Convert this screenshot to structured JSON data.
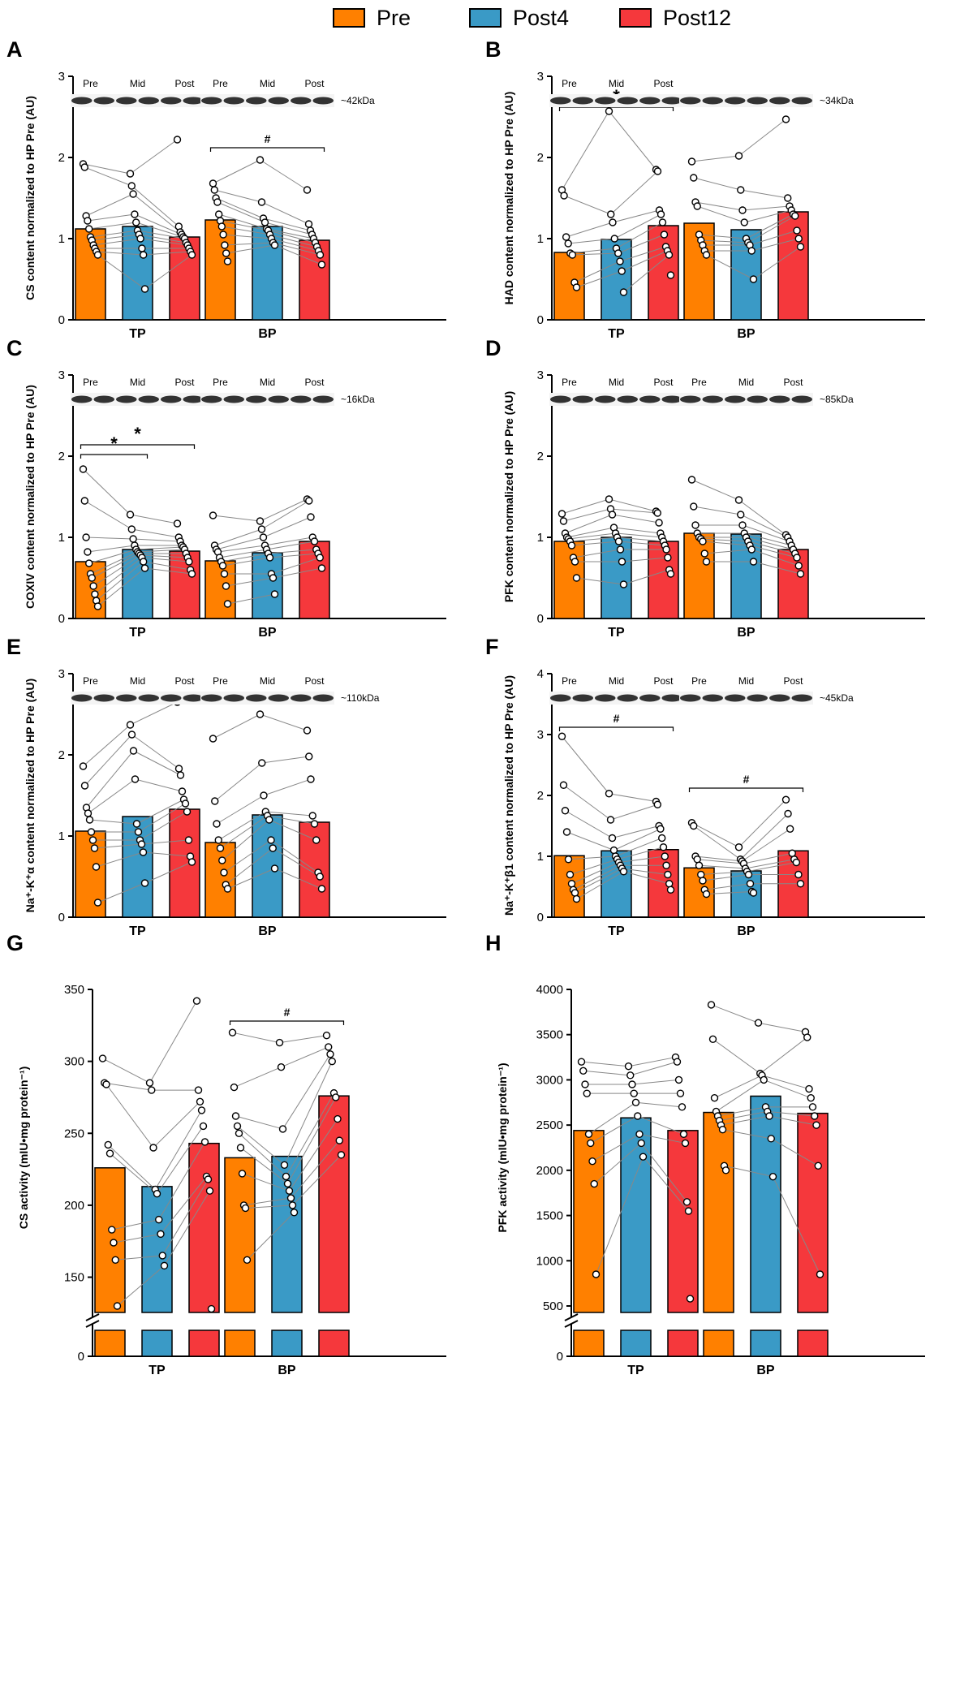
{
  "colors": {
    "Pre": "#FF8000",
    "Post4": "#3A9AC6",
    "Post12": "#F5383C"
  },
  "legend": [
    {
      "label": "Pre",
      "color": "#FF8000"
    },
    {
      "label": "Post4",
      "color": "#3A9AC6"
    },
    {
      "label": "Post12",
      "color": "#F5383C"
    }
  ],
  "chart_data": [
    {
      "panel": "A",
      "type": "bar",
      "ylabel": "CS content normalized to HP Pre (AU)",
      "ylim": [
        0,
        3
      ],
      "yticks": [
        0,
        1,
        2,
        3
      ],
      "groups": [
        "TP",
        "BP"
      ],
      "series": [
        {
          "name": "Pre",
          "values": [
            1.12,
            1.23
          ]
        },
        {
          "name": "Post4",
          "values": [
            1.15,
            1.15
          ]
        },
        {
          "name": "Post12",
          "values": [
            1.02,
            0.98
          ]
        }
      ],
      "points": {
        "TP": {
          "Pre": [
            1.92,
            1.88,
            1.28,
            1.22,
            1.12,
            1.02,
            0.98,
            0.92,
            0.88,
            0.84,
            0.8
          ],
          "Post4": [
            1.8,
            1.65,
            1.55,
            1.3,
            1.2,
            1.1,
            1.05,
            1.0,
            0.88,
            0.8,
            0.38
          ],
          "Post12": [
            2.22,
            1.15,
            1.08,
            1.05,
            1.02,
            1.0,
            0.95,
            0.92,
            0.88,
            0.84,
            0.8
          ]
        },
        "BP": {
          "Pre": [
            1.68,
            1.6,
            1.5,
            1.45,
            1.3,
            1.22,
            1.15,
            1.05,
            0.92,
            0.82,
            0.72
          ],
          "Post4": [
            1.97,
            1.45,
            1.25,
            1.2,
            1.12,
            1.1,
            1.05,
            1.0,
            0.95,
            0.92
          ],
          "Post12": [
            1.6,
            1.18,
            1.1,
            1.05,
            1.0,
            0.95,
            0.9,
            0.85,
            0.8,
            0.68
          ]
        }
      },
      "annotations": [
        {
          "group": "BP",
          "from": 0,
          "to": 2,
          "y": 2.12,
          "label": "#"
        }
      ],
      "blot": {
        "kda": "~42kDa",
        "bands": [
          {
            "group": "TP",
            "labels": [
              "Pre",
              "Mid",
              "Post"
            ]
          },
          {
            "group": "BP",
            "labels": [
              "Pre",
              "Mid",
              "Post"
            ]
          }
        ]
      }
    },
    {
      "panel": "B",
      "type": "bar",
      "ylabel": "HAD content normalized to HP Pre (AU)",
      "ylim": [
        0,
        3
      ],
      "yticks": [
        0,
        1,
        2,
        3
      ],
      "groups": [
        "TP",
        "BP"
      ],
      "series": [
        {
          "name": "Pre",
          "values": [
            0.83,
            1.19
          ]
        },
        {
          "name": "Post4",
          "values": [
            0.99,
            1.11
          ]
        },
        {
          "name": "Post12",
          "values": [
            1.16,
            1.33
          ]
        }
      ],
      "points": {
        "TP": {
          "Pre": [
            1.6,
            1.53,
            1.02,
            0.94,
            0.82,
            0.8,
            0.46,
            0.4
          ],
          "Post4": [
            2.57,
            1.3,
            1.2,
            1.0,
            0.88,
            0.82,
            0.72,
            0.6,
            0.34
          ],
          "Post12": [
            1.85,
            1.83,
            1.35,
            1.3,
            1.2,
            1.05,
            0.9,
            0.85,
            0.8,
            0.55
          ]
        },
        "BP": {
          "Pre": [
            1.95,
            1.75,
            1.45,
            1.4,
            1.05,
            0.98,
            0.92,
            0.85,
            0.8
          ],
          "Post4": [
            2.02,
            1.6,
            1.35,
            1.2,
            1.0,
            0.95,
            0.92,
            0.85,
            0.5
          ],
          "Post12": [
            2.47,
            1.5,
            1.4,
            1.35,
            1.3,
            1.28,
            1.1,
            1.0,
            0.9
          ]
        }
      },
      "annotations": [
        {
          "group": "TP",
          "from": 0,
          "to": 2,
          "y": 2.62,
          "label": "*"
        }
      ],
      "blot": {
        "kda": "~34kDa",
        "bands": [
          {
            "group": "TP",
            "labels": [
              "Pre",
              "Mid",
              "Post"
            ]
          },
          {
            "group": "BP",
            "labels": [
              "",
              "",
              ""
            ]
          }
        ]
      }
    },
    {
      "panel": "C",
      "type": "bar",
      "ylabel": "COXIV content normalized to HP Pre (AU)",
      "ylim": [
        0,
        3
      ],
      "yticks": [
        0,
        1,
        2,
        3
      ],
      "groups": [
        "TP",
        "BP"
      ],
      "series": [
        {
          "name": "Pre",
          "values": [
            0.7,
            0.71
          ]
        },
        {
          "name": "Post4",
          "values": [
            0.85,
            0.81
          ]
        },
        {
          "name": "Post12",
          "values": [
            0.83,
            0.95
          ]
        }
      ],
      "points": {
        "TP": {
          "Pre": [
            1.84,
            1.45,
            1.0,
            0.82,
            0.68,
            0.55,
            0.5,
            0.4,
            0.3,
            0.22,
            0.15
          ],
          "Post4": [
            1.28,
            1.1,
            0.98,
            0.9,
            0.85,
            0.82,
            0.8,
            0.78,
            0.75,
            0.7,
            0.62
          ],
          "Post12": [
            1.17,
            1.0,
            0.95,
            0.9,
            0.88,
            0.85,
            0.8,
            0.75,
            0.7,
            0.6,
            0.55
          ]
        },
        "BP": {
          "Pre": [
            1.27,
            0.9,
            0.85,
            0.82,
            0.75,
            0.7,
            0.65,
            0.55,
            0.4,
            0.18
          ],
          "Post4": [
            1.2,
            1.1,
            1.0,
            0.9,
            0.85,
            0.8,
            0.75,
            0.55,
            0.5,
            0.3
          ],
          "Post12": [
            1.47,
            1.45,
            1.25,
            1.0,
            0.95,
            0.85,
            0.8,
            0.75,
            0.62
          ]
        }
      },
      "annotations": [
        {
          "group": "TP",
          "from": 0,
          "to": 1,
          "y": 2.02,
          "label": "*"
        },
        {
          "group": "TP",
          "from": 0,
          "to": 2,
          "y": 2.14,
          "label": "*"
        }
      ],
      "blot": {
        "kda": "~16kDa",
        "bands": [
          {
            "group": "TP",
            "labels": [
              "Pre",
              "Mid",
              "Post"
            ]
          },
          {
            "group": "BP",
            "labels": [
              "Pre",
              "Mid",
              "Post"
            ]
          }
        ]
      }
    },
    {
      "panel": "D",
      "type": "bar",
      "ylabel": "PFK content normalized to HP Pre (AU)",
      "ylim": [
        0,
        3
      ],
      "yticks": [
        0,
        1,
        2,
        3
      ],
      "groups": [
        "TP",
        "BP"
      ],
      "series": [
        {
          "name": "Pre",
          "values": [
            0.95,
            1.05
          ]
        },
        {
          "name": "Post4",
          "values": [
            1.0,
            1.04
          ]
        },
        {
          "name": "Post12",
          "values": [
            0.95,
            0.85
          ]
        }
      ],
      "points": {
        "TP": {
          "Pre": [
            1.29,
            1.2,
            1.05,
            1.0,
            0.98,
            0.95,
            0.9,
            0.75,
            0.7,
            0.5
          ],
          "Post4": [
            1.47,
            1.35,
            1.28,
            1.12,
            1.05,
            1.0,
            0.95,
            0.85,
            0.7,
            0.42
          ],
          "Post12": [
            1.32,
            1.3,
            1.18,
            1.05,
            1.0,
            0.95,
            0.9,
            0.85,
            0.75,
            0.6,
            0.55
          ]
        },
        "BP": {
          "Pre": [
            1.71,
            1.38,
            1.15,
            1.05,
            1.0,
            0.98,
            0.95,
            0.8,
            0.7
          ],
          "Post4": [
            1.46,
            1.28,
            1.15,
            1.05,
            1.0,
            0.95,
            0.9,
            0.85,
            0.7
          ],
          "Post12": [
            1.03,
            1.0,
            0.95,
            0.9,
            0.85,
            0.8,
            0.75,
            0.65,
            0.55
          ]
        }
      },
      "annotations": [],
      "blot": {
        "kda": "~85kDa",
        "bands": [
          {
            "group": "TP",
            "labels": [
              "Pre",
              "Mid",
              "Post"
            ]
          },
          {
            "group": "BP",
            "labels": [
              "Pre",
              "Mid",
              "Post"
            ]
          }
        ]
      }
    },
    {
      "panel": "E",
      "type": "bar",
      "ylabel": "Na⁺-K⁺α content normalized to HP Pre (AU)",
      "ylim": [
        0,
        3
      ],
      "yticks": [
        0,
        1,
        2,
        3
      ],
      "groups": [
        "TP",
        "BP"
      ],
      "series": [
        {
          "name": "Pre",
          "values": [
            1.06,
            0.92
          ]
        },
        {
          "name": "Post4",
          "values": [
            1.24,
            1.26
          ]
        },
        {
          "name": "Post12",
          "values": [
            1.33,
            1.17
          ]
        }
      ],
      "points": {
        "TP": {
          "Pre": [
            1.86,
            1.62,
            1.35,
            1.28,
            1.2,
            1.05,
            0.95,
            0.85,
            0.62,
            0.18
          ],
          "Post4": [
            2.37,
            2.25,
            2.05,
            1.7,
            1.15,
            1.05,
            0.95,
            0.9,
            0.8,
            0.42
          ],
          "Post12": [
            2.65,
            1.83,
            1.75,
            1.55,
            1.45,
            1.4,
            1.3,
            0.95,
            0.75,
            0.68
          ],
          "BP_placeholder": []
        },
        "BP": {
          "Pre": [
            2.2,
            1.43,
            1.15,
            0.95,
            0.85,
            0.7,
            0.55,
            0.4,
            0.35
          ],
          "Post4": [
            2.5,
            1.9,
            1.5,
            1.3,
            1.25,
            1.2,
            0.95,
            0.85,
            0.6
          ],
          "Post12": [
            2.3,
            1.98,
            1.7,
            1.25,
            1.15,
            0.95,
            0.55,
            0.5,
            0.35
          ]
        }
      },
      "annotations": [],
      "blot": {
        "kda": "~110kDa",
        "bands": [
          {
            "group": "TP",
            "labels": [
              "Pre",
              "Mid",
              "Post"
            ]
          },
          {
            "group": "BP",
            "labels": [
              "Pre",
              "Mid",
              "Post"
            ]
          }
        ]
      }
    },
    {
      "panel": "F",
      "type": "bar",
      "ylabel": "Na⁺-K⁺β1 content normalized to HP Pre (AU)",
      "ylim": [
        0,
        4
      ],
      "yticks": [
        0,
        1,
        2,
        3,
        4
      ],
      "groups": [
        "TP",
        "BP"
      ],
      "series": [
        {
          "name": "Pre",
          "values": [
            1.01,
            0.81
          ]
        },
        {
          "name": "Post4",
          "values": [
            1.09,
            0.76
          ]
        },
        {
          "name": "Post12",
          "values": [
            1.11,
            1.09
          ]
        }
      ],
      "points": {
        "TP": {
          "Pre": [
            2.97,
            2.17,
            1.75,
            1.4,
            0.95,
            0.7,
            0.55,
            0.45,
            0.4,
            0.3
          ],
          "Post4": [
            2.03,
            1.6,
            1.3,
            1.1,
            1.0,
            0.95,
            0.9,
            0.85,
            0.8,
            0.75
          ],
          "Post12": [
            1.9,
            1.85,
            1.5,
            1.45,
            1.3,
            1.15,
            1.0,
            0.85,
            0.7,
            0.55,
            0.45
          ]
        },
        "BP": {
          "Pre": [
            1.55,
            1.5,
            1.0,
            0.95,
            0.85,
            0.7,
            0.6,
            0.45,
            0.38
          ],
          "Post4": [
            1.15,
            0.95,
            0.92,
            0.88,
            0.8,
            0.75,
            0.7,
            0.55,
            0.42,
            0.4
          ],
          "Post12": [
            1.93,
            1.7,
            1.45,
            1.05,
            0.95,
            0.9,
            0.7,
            0.55
          ]
        }
      },
      "annotations": [
        {
          "group": "TP",
          "from": 0,
          "to": 2,
          "y": 3.12,
          "label": "#"
        },
        {
          "group": "BP",
          "from": 0,
          "to": 2,
          "y": 2.12,
          "label": "#"
        }
      ],
      "blot": {
        "kda": "~45kDa",
        "bands": [
          {
            "group": "TP",
            "labels": [
              "Pre",
              "Mid",
              "Post"
            ]
          },
          {
            "group": "BP",
            "labels": [
              "Pre",
              "Mid",
              "Post"
            ]
          }
        ]
      }
    },
    {
      "panel": "G",
      "type": "bar",
      "ylabel": "CS activity (mIU•mg protein⁻¹)",
      "ylim": [
        130,
        350
      ],
      "yticks": [
        150,
        200,
        250,
        300,
        350
      ],
      "broken_axis": true,
      "lower_tick": 0,
      "groups": [
        "TP",
        "BP"
      ],
      "series": [
        {
          "name": "Pre",
          "values": [
            226,
            233
          ]
        },
        {
          "name": "Post4",
          "values": [
            213,
            234
          ]
        },
        {
          "name": "Post12",
          "values": [
            243,
            276
          ]
        }
      ],
      "points": {
        "TP": {
          "Pre": [
            302,
            285,
            284,
            242,
            236,
            183,
            174,
            162,
            130
          ],
          "Post4": [
            285,
            280,
            240,
            211,
            208,
            190,
            180,
            165,
            158
          ],
          "Post12": [
            342,
            280,
            272,
            266,
            255,
            244,
            220,
            218,
            210,
            128
          ]
        },
        "BP": {
          "Pre": [
            320,
            282,
            262,
            255,
            250,
            240,
            222,
            200,
            198,
            162
          ],
          "Post4": [
            313,
            296,
            253,
            228,
            220,
            215,
            210,
            205,
            200,
            195
          ],
          "Post12": [
            318,
            310,
            305,
            300,
            278,
            275,
            260,
            245,
            235
          ]
        }
      },
      "annotations": [
        {
          "group": "BP",
          "from": 0,
          "to": 2,
          "y": 328,
          "label": "#"
        }
      ]
    },
    {
      "panel": "H",
      "type": "bar",
      "ylabel": "PFK activity (mIU•mg protein⁻¹)",
      "ylim": [
        500,
        4000
      ],
      "yticks": [
        500,
        1000,
        1500,
        2000,
        2500,
        3000,
        3500,
        4000
      ],
      "broken_axis": true,
      "lower_tick": 0,
      "groups": [
        "TP",
        "BP"
      ],
      "series": [
        {
          "name": "Pre",
          "values": [
            2440,
            2640
          ]
        },
        {
          "name": "Post4",
          "values": [
            2580,
            2820
          ]
        },
        {
          "name": "Post12",
          "values": [
            2440,
            2630
          ]
        }
      ],
      "points": {
        "TP": {
          "Pre": [
            3200,
            3100,
            2950,
            2850,
            2400,
            2300,
            2100,
            1850,
            850
          ],
          "Post4": [
            3150,
            3050,
            2950,
            2850,
            2750,
            2600,
            2400,
            2300,
            2150
          ],
          "Post12": [
            3250,
            3200,
            3000,
            2850,
            2700,
            2400,
            2300,
            1650,
            1550,
            580
          ]
        },
        "BP": {
          "Pre": [
            3830,
            3450,
            2800,
            2650,
            2600,
            2550,
            2500,
            2450,
            2050,
            2000
          ],
          "Post4": [
            3630,
            3070,
            3050,
            3000,
            2700,
            2650,
            2600,
            2350,
            1930
          ],
          "Post12": [
            3530,
            3470,
            2900,
            2800,
            2700,
            2600,
            2500,
            2050,
            850
          ]
        }
      },
      "annotations": []
    }
  ],
  "layout_refs": {}
}
